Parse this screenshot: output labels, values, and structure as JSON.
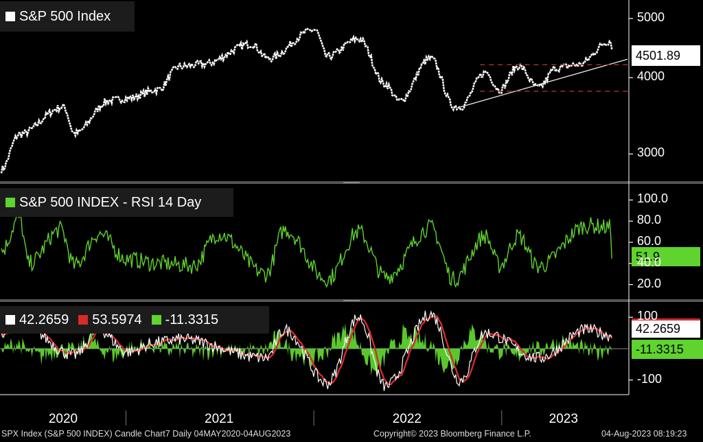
{
  "chart_data": [
    {
      "type": "line",
      "title": "S&P 500 Index",
      "y_ticks": [
        3000,
        4000,
        5000
      ],
      "ylim": [
        2750,
        5250
      ],
      "last_value": "4501.89",
      "x": [
        "2020-05-04",
        "2020-06-08",
        "2020-09-02",
        "2020-09-23",
        "2020-12-01",
        "2021-01-04",
        "2021-03-04",
        "2021-04-15",
        "2021-06-01",
        "2021-09-02",
        "2021-10-04",
        "2022-01-03",
        "2022-01-27",
        "2022-03-29",
        "2022-05-20",
        "2022-06-16",
        "2022-08-16",
        "2022-09-30",
        "2022-10-12",
        "2022-12-01",
        "2022-12-28",
        "2023-02-02",
        "2023-03-13",
        "2023-04-18",
        "2023-05-30",
        "2023-07-31",
        "2023-08-03"
      ],
      "values": [
        2830,
        3230,
        3580,
        3240,
        3670,
        3700,
        3820,
        4170,
        4210,
        4540,
        4300,
        4790,
        4330,
        4630,
        3900,
        3660,
        4300,
        3590,
        3580,
        4080,
        3820,
        4180,
        3850,
        4150,
        4200,
        4590,
        4501.89
      ],
      "support_line": {
        "start": [
          "2022-10-12",
          3580
        ],
        "end": [
          "2023-08-04",
          4200
        ]
      },
      "range_lines": [
        4200,
        3800
      ]
    },
    {
      "type": "line",
      "title": "S&P 500 INDEX - RSI 14 Day",
      "y_ticks": [
        "100.0",
        "80.0",
        "60.0",
        "40.0",
        "20.0"
      ],
      "ylim": [
        10,
        110
      ],
      "last_value": "51.9",
      "x": [
        "2020-05-04",
        "2020-06-08",
        "2020-06-26",
        "2020-08-27",
        "2020-09-23",
        "2020-11-09",
        "2021-01-04",
        "2021-03-04",
        "2021-05-12",
        "2021-06-29",
        "2021-09-30",
        "2021-11-05",
        "2022-01-27",
        "2022-03-29",
        "2022-05-20",
        "2022-08-16",
        "2022-09-30",
        "2022-11-30",
        "2022-12-28",
        "2023-02-02",
        "2023-03-13",
        "2023-06-16",
        "2023-07-31",
        "2023-08-03"
      ],
      "values": [
        52,
        83,
        40,
        72,
        38,
        68,
        44,
        40,
        38,
        68,
        30,
        72,
        25,
        70,
        27,
        74,
        25,
        66,
        38,
        66,
        37,
        76,
        74,
        51.9
      ],
      "series_colors": {
        "rsi": "#5fd32e"
      }
    },
    {
      "type": "line",
      "y_ticks": [
        "100",
        "-100"
      ],
      "ylim": [
        -140,
        140
      ],
      "series": [
        {
          "name": "42.2659",
          "color": "#ffffff",
          "x": [
            "2020-05-04",
            "2020-06-08",
            "2020-09-23",
            "2020-11-09",
            "2021-01-04",
            "2021-03-04",
            "2021-04-15",
            "2021-09-30",
            "2021-11-05",
            "2022-01-27",
            "2022-03-29",
            "2022-05-20",
            "2022-08-16",
            "2022-10-12",
            "2022-11-30",
            "2023-03-13",
            "2023-06-16",
            "2023-08-03"
          ],
          "values": [
            40,
            80,
            -20,
            60,
            -10,
            20,
            30,
            -30,
            60,
            -110,
            100,
            -120,
            110,
            -100,
            50,
            -30,
            60,
            42.2659
          ]
        },
        {
          "name": "53.5974",
          "color": "#d62b2b",
          "x": [
            "2020-05-04",
            "2020-06-08",
            "2020-09-23",
            "2020-11-09",
            "2021-01-04",
            "2021-03-04",
            "2021-04-15",
            "2021-09-30",
            "2021-11-05",
            "2022-01-27",
            "2022-03-29",
            "2022-05-20",
            "2022-08-16",
            "2022-10-12",
            "2022-11-30",
            "2023-03-13",
            "2023-06-16",
            "2023-08-03"
          ],
          "values": [
            45,
            70,
            -10,
            55,
            0,
            25,
            35,
            -20,
            55,
            -100,
            90,
            -110,
            100,
            -90,
            55,
            -20,
            55,
            53.5974
          ]
        },
        {
          "name": "-11.3315",
          "color": "#5fd32e",
          "type": "area",
          "x": [
            "2020-05-04",
            "2020-06-08",
            "2020-09-23",
            "2020-11-09",
            "2021-01-04",
            "2021-03-04",
            "2021-04-15",
            "2021-09-30",
            "2021-11-05",
            "2022-01-27",
            "2022-03-29",
            "2022-05-20",
            "2022-08-16",
            "2022-10-12",
            "2022-11-30",
            "2023-03-13",
            "2023-06-16",
            "2023-08-03"
          ],
          "values": [
            -5,
            10,
            -10,
            5,
            -10,
            -5,
            -5,
            -10,
            5,
            -10,
            10,
            -10,
            10,
            -10,
            -5,
            -10,
            5,
            -11.3315
          ]
        }
      ],
      "last_values": [
        "42.2659",
        "-11.3315"
      ]
    }
  ],
  "x_axis": {
    "range": [
      "2020-05-04",
      "2023-08-04"
    ],
    "year_labels": [
      {
        "label": "2020",
        "date": "2020-09-01"
      },
      {
        "label": "2021",
        "date": "2021-07-01"
      },
      {
        "label": "2022",
        "date": "2022-07-01"
      },
      {
        "label": "2023",
        "date": "2023-05-01"
      }
    ]
  },
  "footer": {
    "left": "SPX Index (S&P 500 INDEX) Candle Chart7  Daily 04MAY2020-04AUG2023",
    "center": "Copyright© 2023 Bloomberg Finance L.P.",
    "right": "04-Aug-2023 08:19:23"
  },
  "colors": {
    "price": "#ffffff",
    "rsi": "#5fd32e",
    "red": "#d62b2b",
    "dashed": "#b03030",
    "separator": "#666666",
    "tag_white": "#ffffff",
    "tag_green": "#5fd32e"
  }
}
